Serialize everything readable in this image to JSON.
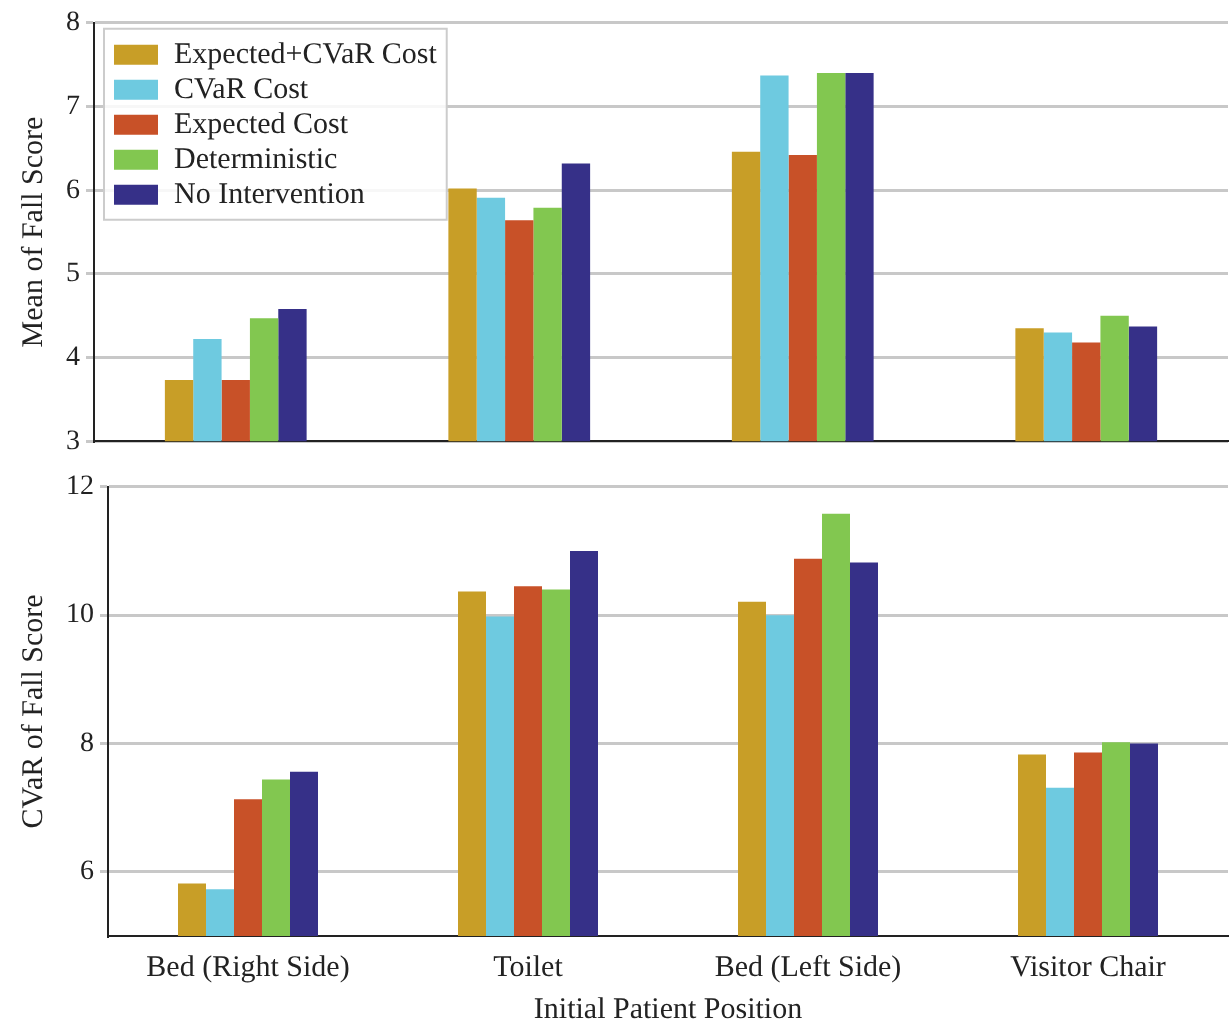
{
  "chart_data": [
    {
      "type": "bar",
      "ylabel": "Mean of Fall Score",
      "categories": [
        null,
        null,
        null,
        null
      ],
      "ylim": [
        3,
        8
      ],
      "yticks": [
        3,
        4,
        5,
        6,
        7,
        8
      ],
      "grid": "y",
      "legend": "top left",
      "tick_labels": "y",
      "series": [
        {
          "name": "Expected+CVaR Cost",
          "color": "#c89e27",
          "values": [
            3.73,
            6.02,
            6.46,
            4.35
          ]
        },
        {
          "name": "CVaR Cost",
          "color": "#6ecae0",
          "values": [
            4.22,
            5.91,
            7.37,
            4.3
          ]
        },
        {
          "name": "Expected Cost",
          "color": "#c85128",
          "values": [
            3.73,
            5.64,
            6.42,
            4.18
          ]
        },
        {
          "name": "Deterministic",
          "color": "#82c750",
          "values": [
            4.47,
            5.79,
            7.4,
            4.5
          ]
        },
        {
          "name": "No Intervention",
          "color": "#363088",
          "values": [
            4.58,
            6.32,
            7.4,
            4.37
          ]
        }
      ]
    },
    {
      "type": "bar",
      "ylabel": "CVaR of Fall Score",
      "xlabel": "Initial Patient Position",
      "categories": [
        "Bed (Right Side)",
        "Toilet",
        "Bed (Left Side)",
        "Visitor Chair"
      ],
      "ylim": [
        5,
        12
      ],
      "yticks": [
        6,
        8,
        10,
        12
      ],
      "grid": "y",
      "series": [
        {
          "color": "#c89e27",
          "values": [
            5.82,
            10.37,
            10.21,
            7.83
          ]
        },
        {
          "color": "#6ecae0",
          "values": [
            5.73,
            9.98,
            10.0,
            7.31
          ]
        },
        {
          "color": "#c85128",
          "values": [
            7.13,
            10.45,
            10.88,
            7.86
          ]
        },
        {
          "color": "#82c750",
          "values": [
            7.44,
            10.4,
            11.58,
            8.02
          ]
        },
        {
          "color": "#363088",
          "values": [
            7.56,
            11.0,
            10.82,
            8.0
          ]
        }
      ]
    }
  ]
}
